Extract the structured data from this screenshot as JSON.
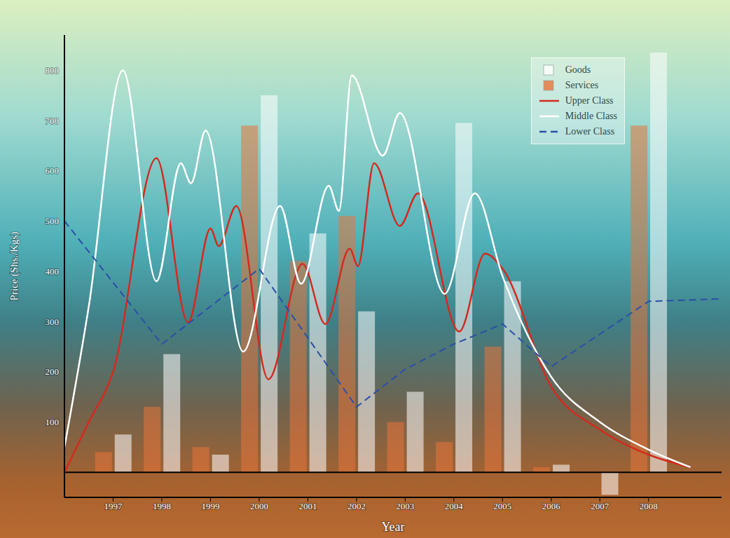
{
  "chart_data": {
    "type": "combo",
    "xlabel": "Year",
    "ylabel": "Price (Shs./Kgs)",
    "xlim": [
      1996,
      2009.5
    ],
    "xticks": [
      1997,
      1998,
      1999,
      2000,
      2001,
      2002,
      2003,
      2004,
      2005,
      2006,
      2007,
      2008
    ],
    "ylim": [
      -50,
      870
    ],
    "yticks": [
      100,
      200,
      300,
      400,
      500,
      600,
      700,
      800
    ],
    "legend": "upper right",
    "series": [
      {
        "name": "Goods",
        "type": "bar",
        "color": "#ffffff",
        "x": [
          1997,
          1998,
          1999,
          2000,
          2001,
          2002,
          2003,
          2004,
          2005,
          2006,
          2007,
          2008
        ],
        "values": [
          75,
          235,
          35,
          750,
          475,
          320,
          160,
          695,
          380,
          15,
          -45,
          835
        ]
      },
      {
        "name": "Services",
        "type": "bar",
        "color": "#e8743b",
        "x": [
          1997,
          1998,
          1999,
          2000,
          2001,
          2002,
          2003,
          2004,
          2005,
          2006,
          2007,
          2008
        ],
        "values": [
          40,
          130,
          50,
          690,
          420,
          510,
          100,
          60,
          250,
          10,
          0,
          690
        ]
      },
      {
        "name": "Upper Class",
        "type": "line",
        "color": "#d42a1e",
        "line_style": "solid",
        "x": [
          1996,
          1996.5,
          1997,
          1997.89,
          1998.54,
          1999,
          1999.17,
          1999.53,
          2000.19,
          2000.89,
          2001.36,
          2001.86,
          2002.03,
          2002.36,
          2002.89,
          2003.26,
          2004.11,
          2004.64,
          2005,
          2006,
          2007,
          2008,
          2008.86
        ],
        "values": [
          0,
          100,
          200,
          625,
          298,
          485,
          450,
          530,
          185,
          415,
          295,
          445,
          410,
          615,
          490,
          555,
          280,
          435,
          405,
          170,
          85,
          35,
          10
        ]
      },
      {
        "name": "Middle Class",
        "type": "line",
        "color": "#ffffff",
        "line_style": "solid",
        "x": [
          1996,
          1996.5,
          1997.2,
          1997.89,
          1998.39,
          1998.6,
          1998.9,
          1999.67,
          2000.43,
          2000.86,
          2001.43,
          2001.64,
          2001.9,
          2002.54,
          2002.89,
          2003.81,
          2004.43,
          2005,
          2006,
          2007,
          2008,
          2008.86
        ],
        "values": [
          50,
          330,
          800,
          380,
          615,
          575,
          680,
          240,
          530,
          375,
          570,
          520,
          790,
          630,
          715,
          355,
          555,
          390,
          190,
          100,
          45,
          10
        ]
      },
      {
        "name": "Lower Class",
        "type": "line",
        "color": "#2a4fa8",
        "line_style": "dashed",
        "x": [
          1996,
          1998,
          2000,
          2002,
          2003,
          2004,
          2005,
          2006,
          2008,
          2009.5
        ],
        "values": [
          500,
          255,
          405,
          130,
          205,
          255,
          295,
          210,
          340,
          345
        ]
      }
    ]
  }
}
